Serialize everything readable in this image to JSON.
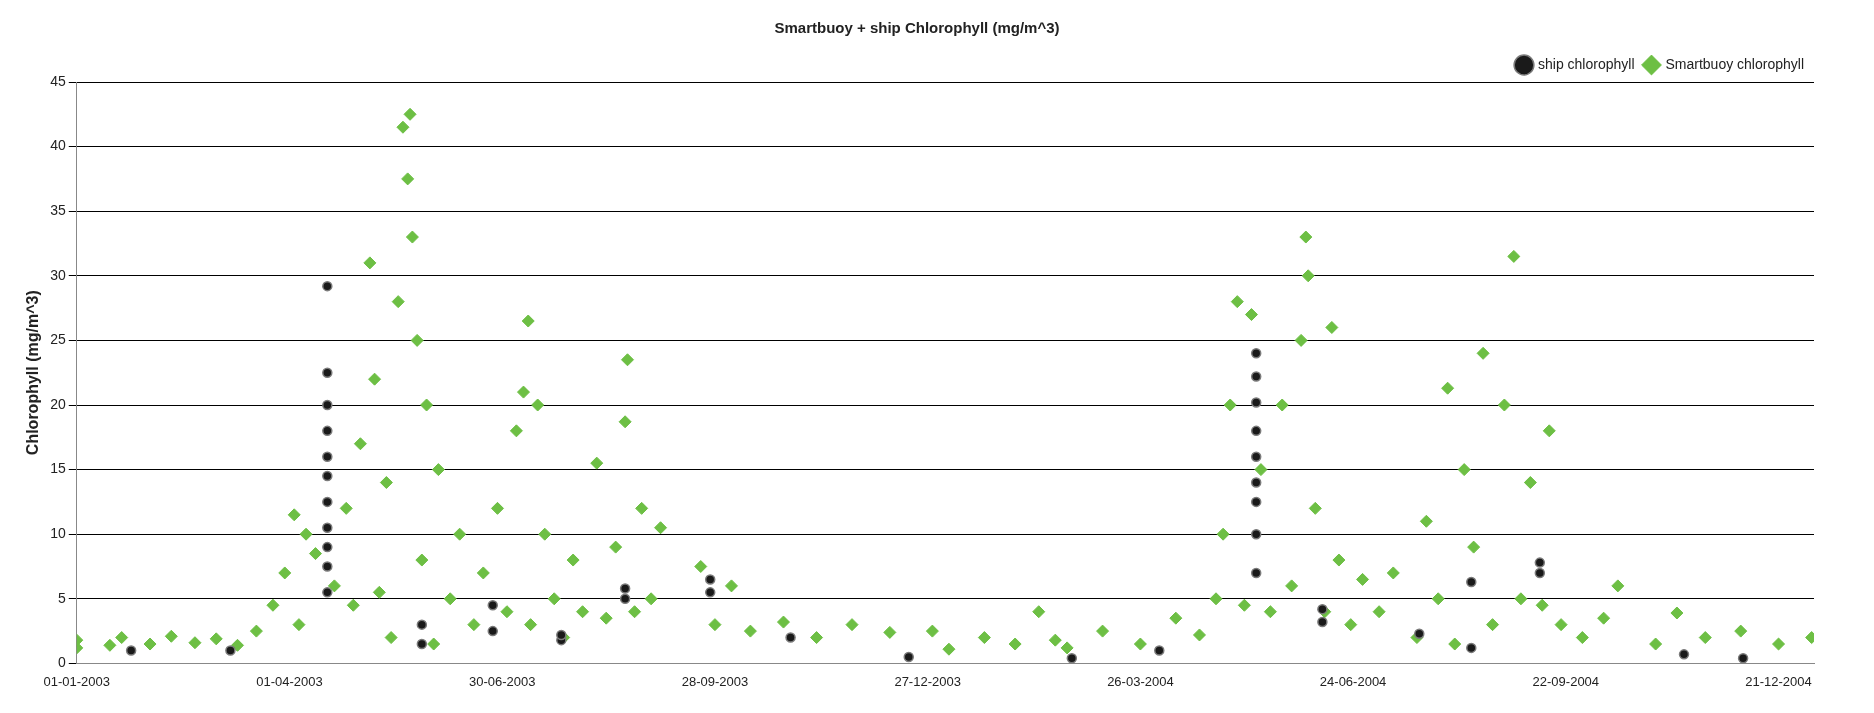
{
  "chart_data": {
    "type": "scatter",
    "title": "Smartbuoy + ship Chlorophyll (mg/m^3)",
    "ylabel": "Chlorophyll (mg/m^3)",
    "xlim": [
      "2003-01-01",
      "2005-01-05"
    ],
    "xticks": [
      {
        "value": "2003-01-01",
        "label": "01-01-2003"
      },
      {
        "value": "2003-04-01",
        "label": "01-04-2003"
      },
      {
        "value": "2003-06-30",
        "label": "30-06-2003"
      },
      {
        "value": "2003-09-28",
        "label": "28-09-2003"
      },
      {
        "value": "2003-12-27",
        "label": "27-12-2003"
      },
      {
        "value": "2004-03-26",
        "label": "26-03-2004"
      },
      {
        "value": "2004-06-24",
        "label": "24-06-2004"
      },
      {
        "value": "2004-09-22",
        "label": "22-09-2004"
      },
      {
        "value": "2004-12-21",
        "label": "21-12-2004"
      }
    ],
    "ylim": [
      0,
      45
    ],
    "yticks": [
      0,
      5,
      10,
      15,
      20,
      25,
      30,
      35,
      40,
      45
    ],
    "grid": "y",
    "legend": "top right",
    "series": [
      {
        "name": "Smartbuoy chlorophyll",
        "color": "#6dbf44",
        "marker": "diamond",
        "x": [
          "2003-01-01",
          "2003-01-01",
          "2003-01-15",
          "2003-01-20",
          "2003-02-01",
          "2003-02-10",
          "2003-02-20",
          "2003-03-01",
          "2003-03-10",
          "2003-03-18",
          "2003-03-25",
          "2003-03-30",
          "2003-04-03",
          "2003-04-05",
          "2003-04-08",
          "2003-04-12",
          "2003-04-20",
          "2003-04-25",
          "2003-04-28",
          "2003-05-01",
          "2003-05-05",
          "2003-05-07",
          "2003-05-09",
          "2003-05-12",
          "2003-05-14",
          "2003-05-17",
          "2003-05-19",
          "2003-05-21",
          "2003-05-22",
          "2003-05-23",
          "2003-05-25",
          "2003-05-27",
          "2003-05-29",
          "2003-06-01",
          "2003-06-03",
          "2003-06-08",
          "2003-06-12",
          "2003-06-18",
          "2003-06-22",
          "2003-06-28",
          "2003-07-02",
          "2003-07-06",
          "2003-07-09",
          "2003-07-11",
          "2003-07-12",
          "2003-07-15",
          "2003-07-18",
          "2003-07-22",
          "2003-07-26",
          "2003-07-30",
          "2003-08-03",
          "2003-08-09",
          "2003-08-13",
          "2003-08-17",
          "2003-08-21",
          "2003-08-22",
          "2003-08-25",
          "2003-08-28",
          "2003-09-01",
          "2003-09-05",
          "2003-09-22",
          "2003-09-28",
          "2003-10-05",
          "2003-10-13",
          "2003-10-27",
          "2003-11-10",
          "2003-11-25",
          "2003-12-11",
          "2003-12-29",
          "2004-01-05",
          "2004-01-20",
          "2004-02-02",
          "2004-02-12",
          "2004-02-19",
          "2004-02-24",
          "2004-03-10",
          "2004-03-26",
          "2004-04-10",
          "2004-04-20",
          "2004-04-27",
          "2004-04-30",
          "2004-05-03",
          "2004-05-06",
          "2004-05-09",
          "2004-05-12",
          "2004-05-16",
          "2004-05-20",
          "2004-05-25",
          "2004-05-29",
          "2004-06-02",
          "2004-06-04",
          "2004-06-05",
          "2004-06-08",
          "2004-06-12",
          "2004-06-15",
          "2004-06-18",
          "2004-06-23",
          "2004-06-28",
          "2004-07-05",
          "2004-07-11",
          "2004-07-21",
          "2004-07-25",
          "2004-07-30",
          "2004-08-03",
          "2004-08-06",
          "2004-08-10",
          "2004-08-14",
          "2004-08-18",
          "2004-08-22",
          "2004-08-27",
          "2004-08-31",
          "2004-09-03",
          "2004-09-07",
          "2004-09-12",
          "2004-09-15",
          "2004-09-20",
          "2004-09-29",
          "2004-10-08",
          "2004-10-14",
          "2004-10-30",
          "2004-11-08",
          "2004-11-20",
          "2004-12-05",
          "2004-12-21",
          "2005-01-04"
        ],
        "values": [
          1.2,
          1.8,
          1.4,
          2.0,
          1.5,
          2.1,
          1.6,
          1.9,
          1.4,
          2.5,
          4.5,
          7,
          11.5,
          3,
          10,
          8.5,
          6,
          12,
          4.5,
          17,
          31,
          22,
          5.5,
          14,
          2,
          28,
          41.5,
          37.5,
          42.5,
          33,
          25,
          8,
          20,
          1.5,
          15,
          5,
          10,
          3,
          7,
          12,
          4,
          18,
          21,
          26.5,
          3,
          20,
          10,
          5,
          2,
          8,
          4,
          15.5,
          3.5,
          9,
          18.7,
          23.5,
          4,
          12,
          5,
          10.5,
          7.5,
          3,
          6,
          2.5,
          3.2,
          2.0,
          3.0,
          2.4,
          2.5,
          1.1,
          2.0,
          1.5,
          4.0,
          1.8,
          1.2,
          2.5,
          1.5,
          3.5,
          2.2,
          5,
          10,
          20,
          28,
          4.5,
          27,
          15,
          4,
          20,
          6,
          25,
          33,
          30,
          12,
          4,
          26,
          8,
          3,
          6.5,
          4,
          7,
          2,
          11,
          5,
          21.3,
          1.5,
          15,
          9,
          24,
          3,
          20,
          31.5,
          5,
          14,
          4.5,
          18,
          3,
          2,
          3.5,
          6,
          1.5,
          3.9,
          2.0,
          2.5,
          1.5,
          2.0
        ]
      },
      {
        "name": "ship chlorophyll",
        "color": "#1a1a1a",
        "marker": "circle",
        "x": [
          "2003-01-24",
          "2003-03-07",
          "2003-04-17",
          "2003-04-17",
          "2003-04-17",
          "2003-04-17",
          "2003-04-17",
          "2003-04-17",
          "2003-04-17",
          "2003-04-17",
          "2003-04-17",
          "2003-04-17",
          "2003-04-17",
          "2003-05-27",
          "2003-05-27",
          "2003-06-26",
          "2003-06-26",
          "2003-07-25",
          "2003-07-25",
          "2003-08-21",
          "2003-08-21",
          "2003-09-26",
          "2003-09-26",
          "2003-10-30",
          "2003-12-19",
          "2004-02-26",
          "2004-04-03",
          "2004-05-14",
          "2004-05-14",
          "2004-05-14",
          "2004-05-14",
          "2004-05-14",
          "2004-05-14",
          "2004-05-14",
          "2004-05-14",
          "2004-05-14",
          "2004-06-11",
          "2004-06-11",
          "2004-07-22",
          "2004-08-13",
          "2004-08-13",
          "2004-09-11",
          "2004-09-11",
          "2004-11-11",
          "2004-12-06"
        ],
        "values": [
          1.0,
          1.0,
          5.5,
          7.5,
          9,
          10.5,
          12.5,
          14.5,
          16,
          18,
          20,
          22.5,
          29.2,
          1.5,
          3,
          2.5,
          4.5,
          1.8,
          2.2,
          5,
          5.8,
          5.5,
          6.5,
          2.0,
          0.5,
          0.4,
          1.0,
          7,
          10,
          12.5,
          14,
          16,
          18,
          20.2,
          22.2,
          24,
          3.2,
          4.2,
          2.3,
          1.2,
          6.3,
          7.0,
          7.8,
          0.7,
          0.4
        ]
      }
    ]
  }
}
